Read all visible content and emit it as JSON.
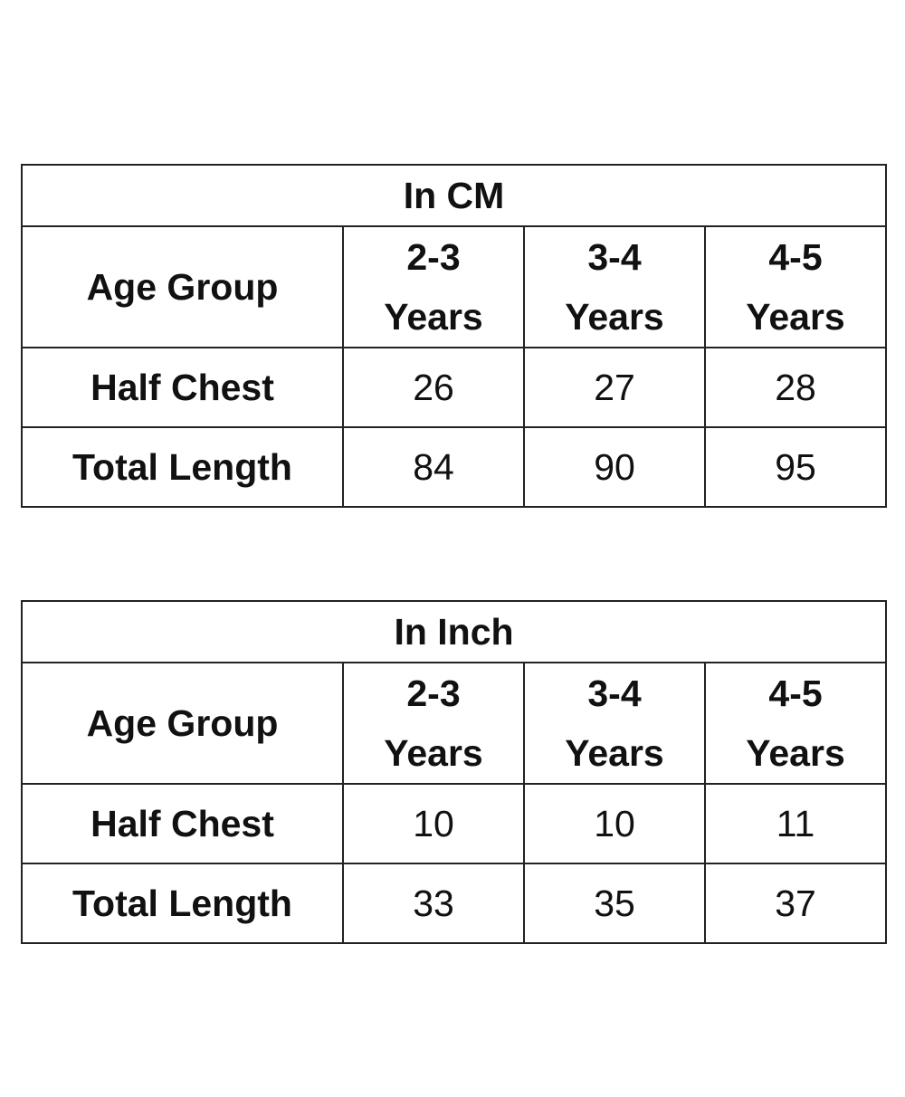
{
  "tables": [
    {
      "title": "In CM",
      "row_header": "Age Group",
      "columns": [
        {
          "line1": "2-3",
          "line2": "Years"
        },
        {
          "line1": "3-4",
          "line2": "Years"
        },
        {
          "line1": "4-5",
          "line2": "Years"
        }
      ],
      "rows": [
        {
          "label": "Half Chest",
          "values": [
            "26",
            "27",
            "28"
          ]
        },
        {
          "label": "Total Length",
          "values": [
            "84",
            "90",
            "95"
          ]
        }
      ]
    },
    {
      "title": "In Inch",
      "row_header": "Age Group",
      "columns": [
        {
          "line1": "2-3",
          "line2": "Years"
        },
        {
          "line1": "3-4",
          "line2": "Years"
        },
        {
          "line1": "4-5",
          "line2": "Years"
        }
      ],
      "rows": [
        {
          "label": "Half Chest",
          "values": [
            "10",
            "10",
            "11"
          ]
        },
        {
          "label": "Total Length",
          "values": [
            "33",
            "35",
            "37"
          ]
        }
      ]
    }
  ]
}
